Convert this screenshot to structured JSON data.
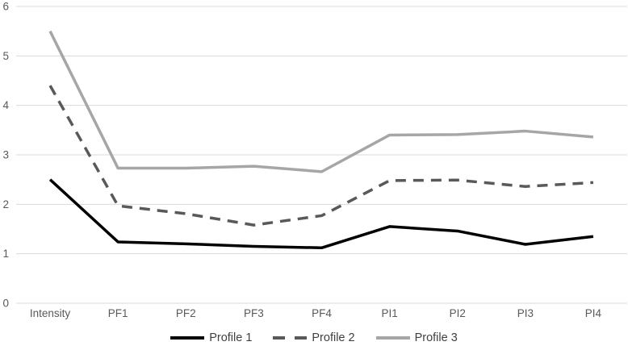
{
  "chart_data": {
    "type": "line",
    "title": "",
    "xlabel": "",
    "ylabel": "",
    "categories": [
      "Intensity",
      "PF1",
      "PF2",
      "PF3",
      "PF4",
      "PI1",
      "PI2",
      "PI3",
      "PI4"
    ],
    "series": [
      {
        "name": "Profile 1",
        "style": "solid",
        "color": "#000000",
        "values": [
          2.5,
          1.24,
          1.2,
          1.15,
          1.12,
          1.55,
          1.46,
          1.19,
          1.35
        ]
      },
      {
        "name": "Profile 2",
        "style": "dashed",
        "color": "#595959",
        "values": [
          4.4,
          1.97,
          1.81,
          1.58,
          1.77,
          2.48,
          2.49,
          2.36,
          2.44
        ]
      },
      {
        "name": "Profile 3",
        "style": "solid",
        "color": "#a6a6a6",
        "values": [
          5.5,
          2.73,
          2.73,
          2.77,
          2.66,
          3.4,
          3.41,
          3.48,
          3.36
        ]
      }
    ],
    "ylim": [
      0,
      6
    ],
    "y_ticks": [
      "0",
      "1",
      "2",
      "3",
      "4",
      "5",
      "6"
    ],
    "grid": true,
    "gridline_color": "#d9d9d9",
    "tick_label_color": "#595959",
    "legend_position": "bottom"
  }
}
